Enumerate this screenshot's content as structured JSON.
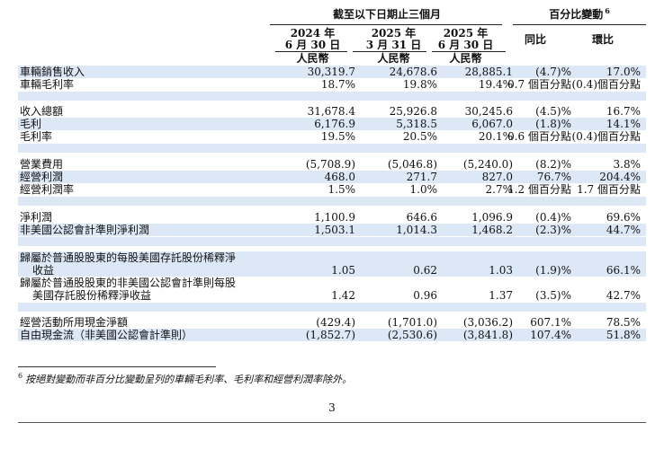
{
  "header": {
    "group_period": "截至以下日期止三個月",
    "group_change": "百分比變動",
    "group_change_note": "6",
    "col1_year": "2024 年",
    "col1_date": "6 月 30 日",
    "col2_year": "2025 年",
    "col2_date": "3 月 31 日",
    "col3_year": "2025 年",
    "col3_date": "6 月 30 日",
    "yoy": "同比",
    "qoq": "環比",
    "currency": "人民幣"
  },
  "rows": [
    {
      "label": "車輛銷售收入",
      "v1": "30,319.7",
      "v2": "24,678.6",
      "v3": "28,885.1",
      "yoy": "(4.7)%",
      "qoq": "17.0%"
    },
    {
      "label": "車輛毛利率",
      "v1": "18.7%",
      "v2": "19.8%",
      "v3": "19.4%",
      "yoy": "0.7 個百分點",
      "qoq": "(0.4)個百分點"
    },
    {
      "label": "收入總額",
      "v1": "31,678.4",
      "v2": "25,926.8",
      "v3": "30,245.6",
      "yoy": "(4.5)%",
      "qoq": "16.7%"
    },
    {
      "label": "毛利",
      "v1": "6,176.9",
      "v2": "5,318.5",
      "v3": "6,067.0",
      "yoy": "(1.8)%",
      "qoq": "14.1%"
    },
    {
      "label": "毛利率",
      "v1": "19.5%",
      "v2": "20.5%",
      "v3": "20.1%",
      "yoy": "0.6 個百分點",
      "qoq": "(0.4)個百分點"
    },
    {
      "label": "營業費用",
      "v1": "(5,708.9)",
      "v2": "(5,046.8)",
      "v3": "(5,240.0)",
      "yoy": "(8.2)%",
      "qoq": "3.8%"
    },
    {
      "label": "經營利潤",
      "v1": "468.0",
      "v2": "271.7",
      "v3": "827.0",
      "yoy": "76.7%",
      "qoq": "204.4%"
    },
    {
      "label": "經營利潤率",
      "v1": "1.5%",
      "v2": "1.0%",
      "v3": "2.7%",
      "yoy": "1.2 個百分點",
      "qoq": "1.7 個百分點"
    },
    {
      "label": "淨利潤",
      "v1": "1,100.9",
      "v2": "646.6",
      "v3": "1,096.9",
      "yoy": "(0.4)%",
      "qoq": "69.6%"
    },
    {
      "label": "非美國公認會計準則淨利潤",
      "v1": "1,503.1",
      "v2": "1,014.3",
      "v3": "1,468.2",
      "yoy": "(2.3)%",
      "qoq": "44.7%"
    },
    {
      "label": "歸屬於普通股股東的每股美國存託股份稀釋淨",
      "label2": "收益",
      "v1": "1.05",
      "v2": "0.62",
      "v3": "1.03",
      "yoy": "(1.9)%",
      "qoq": "66.1%"
    },
    {
      "label": "歸屬於普通股股東的非美國公認會計準則每股",
      "label2": "美國存託股份稀釋淨收益",
      "v1": "1.42",
      "v2": "0.96",
      "v3": "1.37",
      "yoy": "(3.5)%",
      "qoq": "42.7%"
    },
    {
      "label": "經營活動所用現金淨額",
      "v1": "(429.4)",
      "v2": "(1,701.0)",
      "v3": "(3,036.2)",
      "yoy": "607.1%",
      "qoq": "78.5%"
    },
    {
      "label": "自由現金流（非美國公認會計準則）",
      "v1": "(1,852.7)",
      "v2": "(2,530.6)",
      "v3": "(3,841.8)",
      "yoy": "107.4%",
      "qoq": "51.8%"
    }
  ],
  "footnote": {
    "mark": "6",
    "text": "按絕對變動而非百分比變動呈列的車輛毛利率、毛利率和經營利潤率除外。"
  },
  "page_number": "3"
}
